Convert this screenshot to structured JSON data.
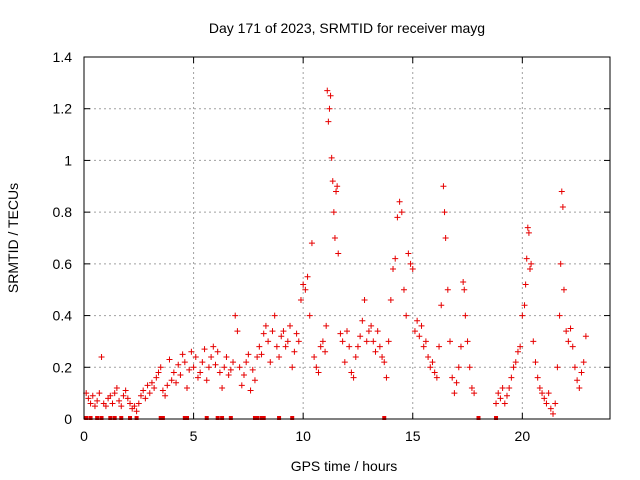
{
  "chart_data": {
    "type": "scatter",
    "title": "Day 171 of 2023, SRMTID for receiver mayg",
    "xlabel": "GPS time / hours",
    "ylabel": "SRMTID / TECUs",
    "xlim": [
      0,
      24
    ],
    "ylim": [
      0,
      1.4
    ],
    "xticks": [
      0,
      5,
      10,
      15,
      20
    ],
    "xtick_labels": [
      "0",
      "5",
      "10",
      "15",
      "20"
    ],
    "yticks": [
      0,
      0.2,
      0.4,
      0.6,
      0.8,
      1.0,
      1.2,
      1.4
    ],
    "ytick_labels": [
      "0",
      "0.2",
      "0.4",
      "0.6",
      "0.8",
      "1",
      "1.2",
      "1.4"
    ],
    "grid": true,
    "marker": "+",
    "color": "#e60000",
    "series": [
      {
        "name": "SRMTID",
        "points": [
          [
            0.1,
            0.1
          ],
          [
            0.2,
            0.08
          ],
          [
            0.3,
            0.06
          ],
          [
            0.4,
            0.09
          ],
          [
            0.5,
            0.05
          ],
          [
            0.6,
            0.07
          ],
          [
            0.7,
            0.1
          ],
          [
            0.8,
            0.24
          ],
          [
            0.9,
            0.06
          ],
          [
            1.0,
            0.05
          ],
          [
            1.1,
            0.08
          ],
          [
            1.2,
            0.09
          ],
          [
            1.3,
            0.06
          ],
          [
            1.4,
            0.1
          ],
          [
            1.5,
            0.12
          ],
          [
            1.6,
            0.07
          ],
          [
            1.7,
            0.05
          ],
          [
            1.8,
            0.09
          ],
          [
            1.9,
            0.11
          ],
          [
            2.0,
            0.08
          ],
          [
            2.1,
            0.06
          ],
          [
            2.2,
            0.04
          ],
          [
            2.3,
            0.05
          ],
          [
            2.4,
            0.03
          ],
          [
            2.5,
            0.06
          ],
          [
            2.6,
            0.09
          ],
          [
            2.7,
            0.11
          ],
          [
            2.8,
            0.08
          ],
          [
            2.9,
            0.13
          ],
          [
            3.0,
            0.1
          ],
          [
            3.1,
            0.14
          ],
          [
            3.2,
            0.12
          ],
          [
            3.3,
            0.16
          ],
          [
            3.4,
            0.18
          ],
          [
            3.5,
            0.2
          ],
          [
            3.6,
            0.11
          ],
          [
            3.7,
            0.09
          ],
          [
            3.8,
            0.13
          ],
          [
            3.9,
            0.23
          ],
          [
            4.0,
            0.15
          ],
          [
            4.1,
            0.18
          ],
          [
            4.2,
            0.14
          ],
          [
            4.3,
            0.21
          ],
          [
            4.4,
            0.17
          ],
          [
            4.5,
            0.25
          ],
          [
            4.6,
            0.22
          ],
          [
            4.7,
            0.12
          ],
          [
            4.8,
            0.19
          ],
          [
            4.9,
            0.26
          ],
          [
            5.0,
            0.2
          ],
          [
            5.1,
            0.24
          ],
          [
            5.2,
            0.16
          ],
          [
            5.3,
            0.18
          ],
          [
            5.4,
            0.22
          ],
          [
            5.5,
            0.27
          ],
          [
            5.6,
            0.15
          ],
          [
            5.7,
            0.2
          ],
          [
            5.8,
            0.24
          ],
          [
            5.9,
            0.28
          ],
          [
            6.0,
            0.21
          ],
          [
            6.1,
            0.26
          ],
          [
            6.2,
            0.18
          ],
          [
            6.3,
            0.12
          ],
          [
            6.4,
            0.2
          ],
          [
            6.5,
            0.24
          ],
          [
            6.6,
            0.17
          ],
          [
            6.7,
            0.19
          ],
          [
            6.8,
            0.22
          ],
          [
            6.9,
            0.4
          ],
          [
            7.0,
            0.34
          ],
          [
            7.1,
            0.2
          ],
          [
            7.2,
            0.13
          ],
          [
            7.3,
            0.17
          ],
          [
            7.4,
            0.22
          ],
          [
            7.5,
            0.25
          ],
          [
            7.6,
            0.11
          ],
          [
            7.7,
            0.19
          ],
          [
            7.8,
            0.15
          ],
          [
            7.9,
            0.24
          ],
          [
            8.0,
            0.28
          ],
          [
            8.1,
            0.25
          ],
          [
            8.2,
            0.33
          ],
          [
            8.3,
            0.36
          ],
          [
            8.4,
            0.3
          ],
          [
            8.5,
            0.22
          ],
          [
            8.6,
            0.34
          ],
          [
            8.7,
            0.4
          ],
          [
            8.8,
            0.28
          ],
          [
            8.9,
            0.24
          ],
          [
            9.0,
            0.32
          ],
          [
            9.1,
            0.34
          ],
          [
            9.2,
            0.28
          ],
          [
            9.3,
            0.3
          ],
          [
            9.4,
            0.36
          ],
          [
            9.5,
            0.2
          ],
          [
            9.6,
            0.26
          ],
          [
            9.7,
            0.33
          ],
          [
            9.8,
            0.3
          ],
          [
            9.9,
            0.46
          ],
          [
            10.0,
            0.52
          ],
          [
            10.1,
            0.5
          ],
          [
            10.2,
            0.55
          ],
          [
            10.3,
            0.4
          ],
          [
            10.4,
            0.68
          ],
          [
            10.5,
            0.24
          ],
          [
            10.6,
            0.2
          ],
          [
            10.7,
            0.18
          ],
          [
            10.8,
            0.28
          ],
          [
            10.9,
            0.3
          ],
          [
            11.0,
            0.26
          ],
          [
            11.05,
            0.36
          ],
          [
            11.1,
            1.27
          ],
          [
            11.15,
            1.15
          ],
          [
            11.2,
            1.2
          ],
          [
            11.25,
            1.25
          ],
          [
            11.3,
            1.01
          ],
          [
            11.35,
            0.92
          ],
          [
            11.4,
            0.8
          ],
          [
            11.45,
            0.7
          ],
          [
            11.5,
            0.88
          ],
          [
            11.55,
            0.9
          ],
          [
            11.6,
            0.64
          ],
          [
            11.7,
            0.33
          ],
          [
            11.8,
            0.3
          ],
          [
            11.9,
            0.22
          ],
          [
            12.0,
            0.34
          ],
          [
            12.1,
            0.28
          ],
          [
            12.2,
            0.18
          ],
          [
            12.3,
            0.16
          ],
          [
            12.4,
            0.24
          ],
          [
            12.5,
            0.28
          ],
          [
            12.6,
            0.32
          ],
          [
            12.7,
            0.38
          ],
          [
            12.8,
            0.46
          ],
          [
            12.9,
            0.3
          ],
          [
            13.0,
            0.34
          ],
          [
            13.1,
            0.36
          ],
          [
            13.2,
            0.3
          ],
          [
            13.3,
            0.26
          ],
          [
            13.4,
            0.34
          ],
          [
            13.5,
            0.28
          ],
          [
            13.6,
            0.24
          ],
          [
            13.7,
            0.22
          ],
          [
            13.8,
            0.16
          ],
          [
            13.9,
            0.3
          ],
          [
            14.0,
            0.46
          ],
          [
            14.1,
            0.58
          ],
          [
            14.2,
            0.62
          ],
          [
            14.3,
            0.78
          ],
          [
            14.4,
            0.84
          ],
          [
            14.5,
            0.8
          ],
          [
            14.6,
            0.5
          ],
          [
            14.7,
            0.4
          ],
          [
            14.8,
            0.64
          ],
          [
            14.9,
            0.6
          ],
          [
            15.0,
            0.58
          ],
          [
            15.1,
            0.34
          ],
          [
            15.2,
            0.38
          ],
          [
            15.3,
            0.32
          ],
          [
            15.4,
            0.36
          ],
          [
            15.5,
            0.28
          ],
          [
            15.6,
            0.3
          ],
          [
            15.7,
            0.24
          ],
          [
            15.8,
            0.2
          ],
          [
            15.9,
            0.22
          ],
          [
            16.0,
            0.18
          ],
          [
            16.1,
            0.16
          ],
          [
            16.2,
            0.28
          ],
          [
            16.3,
            0.44
          ],
          [
            16.4,
            0.9
          ],
          [
            16.45,
            0.8
          ],
          [
            16.5,
            0.7
          ],
          [
            16.6,
            0.5
          ],
          [
            16.7,
            0.3
          ],
          [
            16.8,
            0.16
          ],
          [
            16.9,
            0.1
          ],
          [
            17.0,
            0.14
          ],
          [
            17.1,
            0.2
          ],
          [
            17.2,
            0.28
          ],
          [
            17.3,
            0.53
          ],
          [
            17.35,
            0.5
          ],
          [
            17.4,
            0.4
          ],
          [
            17.5,
            0.3
          ],
          [
            17.6,
            0.2
          ],
          [
            17.7,
            0.12
          ],
          [
            17.8,
            0.1
          ],
          [
            18.8,
            0.06
          ],
          [
            18.9,
            0.1
          ],
          [
            19.0,
            0.08
          ],
          [
            19.1,
            0.12
          ],
          [
            19.2,
            0.06
          ],
          [
            19.3,
            0.09
          ],
          [
            19.4,
            0.12
          ],
          [
            19.5,
            0.16
          ],
          [
            19.6,
            0.2
          ],
          [
            19.7,
            0.22
          ],
          [
            19.8,
            0.26
          ],
          [
            19.9,
            0.28
          ],
          [
            20.0,
            0.4
          ],
          [
            20.1,
            0.44
          ],
          [
            20.15,
            0.52
          ],
          [
            20.2,
            0.62
          ],
          [
            20.25,
            0.74
          ],
          [
            20.3,
            0.72
          ],
          [
            20.35,
            0.58
          ],
          [
            20.4,
            0.6
          ],
          [
            20.5,
            0.3
          ],
          [
            20.6,
            0.22
          ],
          [
            20.7,
            0.16
          ],
          [
            20.8,
            0.12
          ],
          [
            20.9,
            0.1
          ],
          [
            21.0,
            0.08
          ],
          [
            21.1,
            0.06
          ],
          [
            21.2,
            0.1
          ],
          [
            21.3,
            0.04
          ],
          [
            21.4,
            0.02
          ],
          [
            21.5,
            0.06
          ],
          [
            21.6,
            0.2
          ],
          [
            21.7,
            0.4
          ],
          [
            21.75,
            0.6
          ],
          [
            21.8,
            0.88
          ],
          [
            21.85,
            0.82
          ],
          [
            21.9,
            0.5
          ],
          [
            22.0,
            0.34
          ],
          [
            22.1,
            0.3
          ],
          [
            22.2,
            0.35
          ],
          [
            22.3,
            0.28
          ],
          [
            22.4,
            0.2
          ],
          [
            22.5,
            0.15
          ],
          [
            22.6,
            0.12
          ],
          [
            22.7,
            0.18
          ],
          [
            22.8,
            0.22
          ],
          [
            22.9,
            0.32
          ]
        ]
      }
    ],
    "gap_markers_x": [
      0.1,
      0.3,
      0.6,
      0.8,
      1.2,
      1.4,
      1.7,
      2.1,
      2.4,
      3.5,
      3.6,
      4.6,
      4.7,
      5.6,
      6.1,
      6.3,
      6.7,
      7.8,
      7.9,
      8.1,
      8.2,
      8.9,
      9.5,
      13.7,
      18.0,
      18.8
    ]
  }
}
